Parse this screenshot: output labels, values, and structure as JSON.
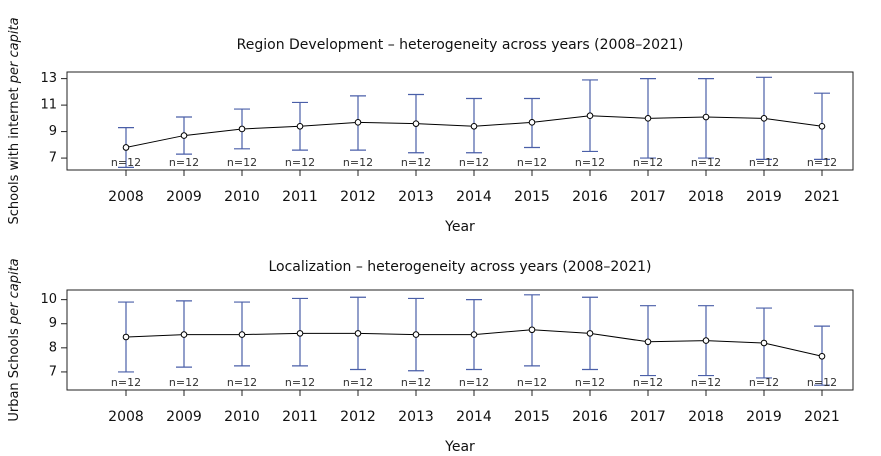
{
  "chart_data": [
    {
      "type": "line",
      "title": "Region Development – heterogeneity across years (2008–2021)",
      "xlabel": "Year",
      "ylabel": "Schools with internet",
      "ylabel_italic": "per capita",
      "categories": [
        "2008",
        "2009",
        "2010",
        "2011",
        "2012",
        "2013",
        "2014",
        "2015",
        "2016",
        "2017",
        "2018",
        "2019",
        "2021"
      ],
      "series": [
        {
          "color": "#000000",
          "error_color": "#4a5fa8",
          "values": [
            7.8,
            8.7,
            9.2,
            9.4,
            9.7,
            9.6,
            9.4,
            9.7,
            10.2,
            10.0,
            10.1,
            10.0,
            9.4
          ],
          "upper": [
            9.3,
            10.1,
            10.7,
            11.2,
            11.7,
            11.8,
            11.5,
            11.5,
            12.9,
            13.0,
            13.0,
            13.1,
            11.9
          ],
          "lower": [
            6.3,
            7.3,
            7.7,
            7.6,
            7.6,
            7.4,
            7.4,
            7.8,
            7.5,
            7.0,
            7.0,
            6.9,
            6.9
          ],
          "n_labels": [
            "n=12",
            "n=12",
            "n=12",
            "n=12",
            "n=12",
            "n=12",
            "n=12",
            "n=12",
            "n=12",
            "n=12",
            "n=12",
            "n=12",
            "n=12"
          ]
        }
      ],
      "ylim": [
        6.1,
        13.5
      ],
      "yticks": [
        7,
        9,
        11,
        13
      ]
    },
    {
      "type": "line",
      "title": "Localization – heterogeneity across years (2008–2021)",
      "xlabel": "Year",
      "ylabel": "Urban Schools",
      "ylabel_italic": "per capita",
      "categories": [
        "2008",
        "2009",
        "2010",
        "2011",
        "2012",
        "2013",
        "2014",
        "2015",
        "2016",
        "2017",
        "2018",
        "2019",
        "2021"
      ],
      "series": [
        {
          "color": "#000000",
          "error_color": "#4a5fa8",
          "values": [
            8.45,
            8.55,
            8.55,
            8.6,
            8.6,
            8.55,
            8.55,
            8.75,
            8.6,
            8.25,
            8.3,
            8.2,
            7.65
          ],
          "upper": [
            9.9,
            9.95,
            9.9,
            10.05,
            10.1,
            10.05,
            10.0,
            10.2,
            10.1,
            9.75,
            9.75,
            9.65,
            8.9
          ],
          "lower": [
            7.0,
            7.2,
            7.25,
            7.25,
            7.1,
            7.05,
            7.1,
            7.25,
            7.1,
            6.85,
            6.85,
            6.75,
            6.45
          ],
          "n_labels": [
            "n=12",
            "n=12",
            "n=12",
            "n=12",
            "n=12",
            "n=12",
            "n=12",
            "n=12",
            "n=12",
            "n=12",
            "n=12",
            "n=12",
            "n=12"
          ]
        }
      ],
      "ylim": [
        6.25,
        10.4
      ],
      "yticks": [
        7,
        8,
        9,
        10
      ]
    }
  ]
}
